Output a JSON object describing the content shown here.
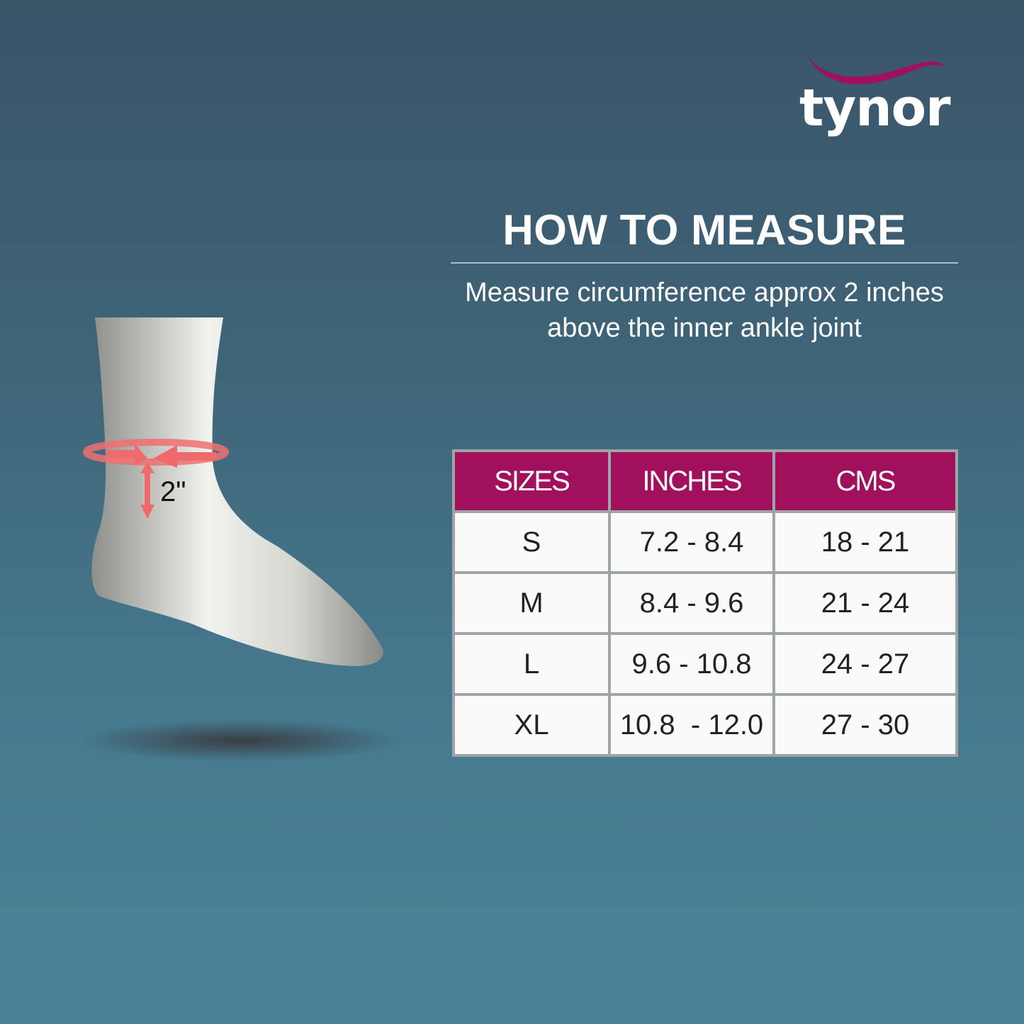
{
  "brand": {
    "name": "tynor",
    "accent_color": "#a0105c"
  },
  "heading": {
    "title": "HOW TO MEASURE",
    "instruction": "Measure circumference approx 2 inches above the inner ankle joint"
  },
  "illustration": {
    "measure_label": "2\""
  },
  "size_table": {
    "headers": [
      "SIZES",
      "INCHES",
      "CMS"
    ],
    "rows": [
      [
        "S",
        "7.2 - 8.4",
        "18 - 21"
      ],
      [
        "M",
        "8.4 - 9.6",
        "21 - 24"
      ],
      [
        "L",
        "9.6 - 10.8",
        "24 - 27"
      ],
      [
        "XL",
        "10.8  - 12.0",
        "27 - 30"
      ]
    ]
  }
}
